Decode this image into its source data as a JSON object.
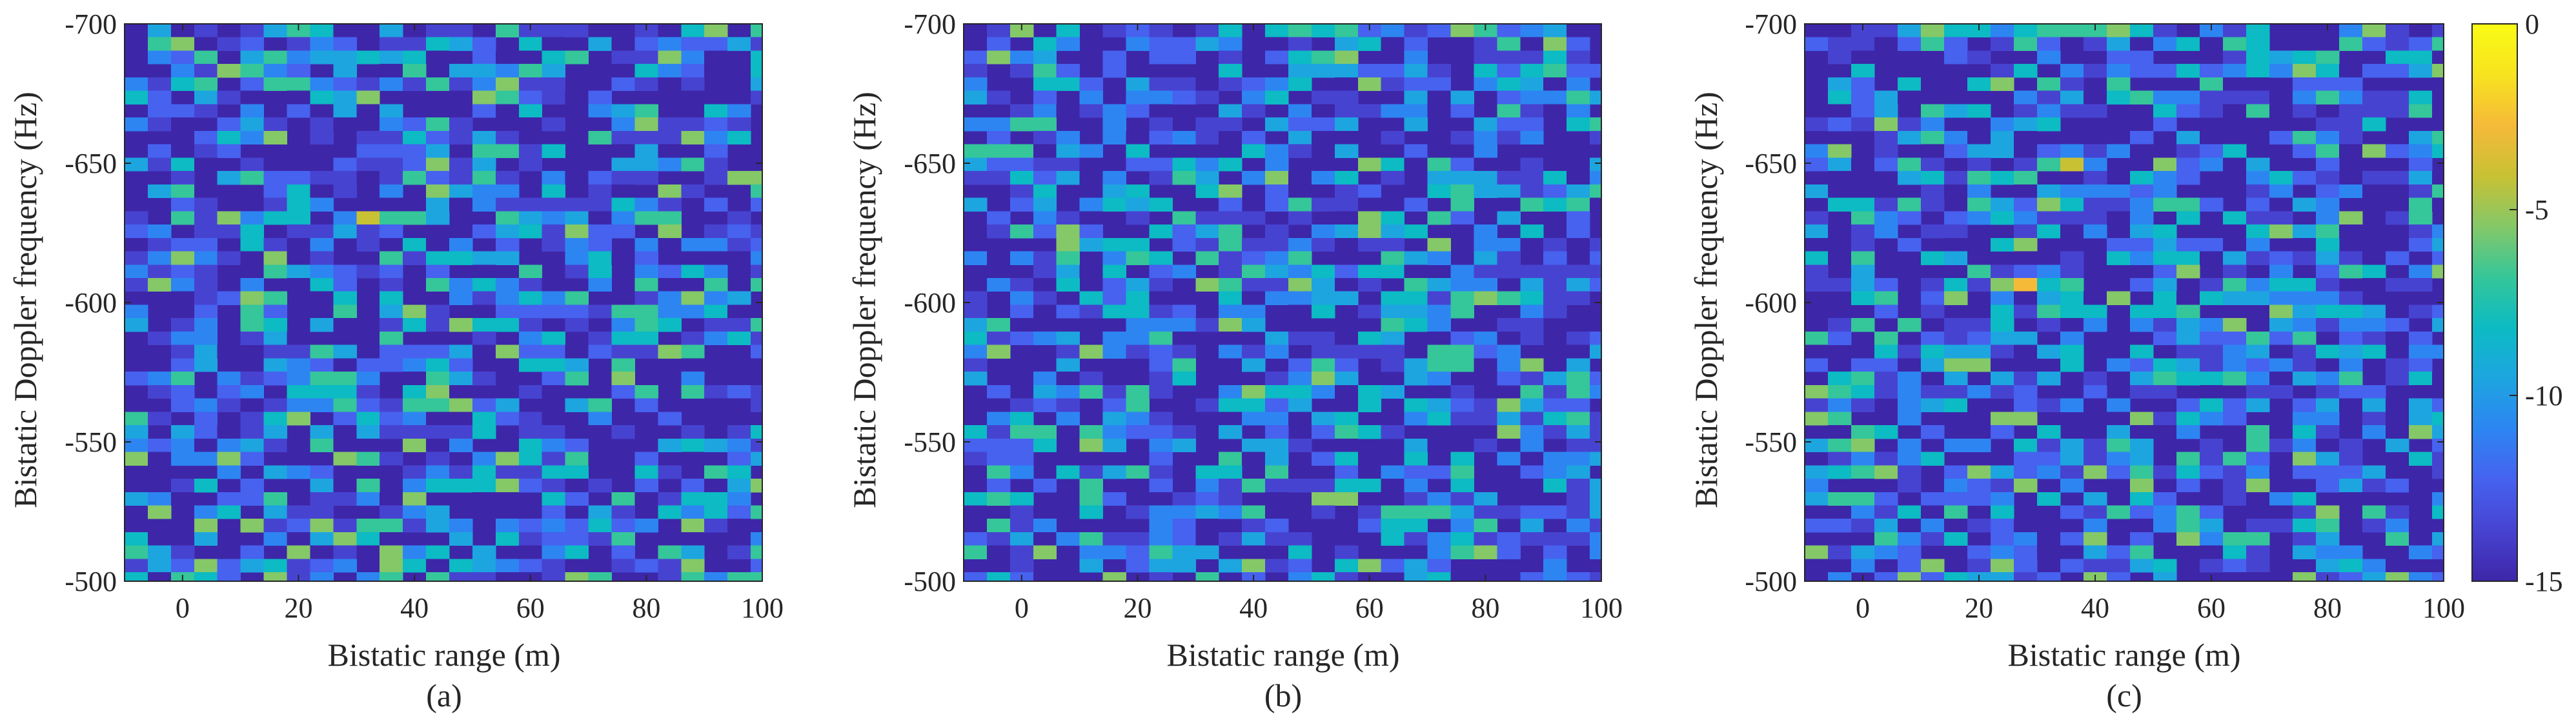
{
  "colormap": [
    "#3e26a8",
    "#4743d1",
    "#4662ef",
    "#2d85f2",
    "#1da5e0",
    "#0cbbc3",
    "#35c69a",
    "#84c868",
    "#c8c134",
    "#f6ba39",
    "#f7e31f",
    "#f9fb15"
  ],
  "chart_data": [
    {
      "type": "heatmap",
      "panel_label": "(a)",
      "xlabel": "Bistatic range (m)",
      "ylabel": "Bistatic Doppler frequency (Hz)",
      "xlim": [
        -10,
        100
      ],
      "ylim": [
        -700,
        -500
      ],
      "xticks": [
        "0",
        "20",
        "40",
        "60",
        "80",
        "100"
      ],
      "xtick_values": [
        0,
        20,
        40,
        60,
        80,
        100
      ],
      "yticks": [
        "-700",
        "-650",
        "-600",
        "-550",
        "-500"
      ],
      "ytick_values": [
        -700,
        -650,
        -600,
        -550,
        -500
      ],
      "grid": {
        "range_bins": 28,
        "doppler_bins": 42,
        "range_step_m": 4,
        "doppler_step_hz": 4.8
      },
      "value_range_db": [
        -15,
        0
      ],
      "seed": 11,
      "hotspots": [
        {
          "range": 33,
          "doppler": -630,
          "value_db": -4
        },
        {
          "range": 88,
          "doppler": -600,
          "value_db": -4
        },
        {
          "range": 0,
          "doppler": -615,
          "value_db": -5
        },
        {
          "range": 55,
          "doppler": -535,
          "value_db": -5
        },
        {
          "range": 90,
          "doppler": -528,
          "value_db": -5
        },
        {
          "range": -7,
          "doppler": -510,
          "value_db": -6
        },
        {
          "range": 28,
          "doppler": -515,
          "value_db": -5
        },
        {
          "range": 85,
          "doppler": -690,
          "value_db": -6
        }
      ],
      "units": "dB"
    },
    {
      "type": "heatmap",
      "panel_label": "(b)",
      "xlabel": "Bistatic range (m)",
      "ylabel": "Bistatic Doppler frequency (Hz)",
      "xlim": [
        -10,
        100
      ],
      "ylim": [
        -700,
        -500
      ],
      "xticks": [
        "0",
        "20",
        "40",
        "60",
        "80",
        "100"
      ],
      "xtick_values": [
        0,
        20,
        40,
        60,
        80,
        100
      ],
      "yticks": [
        "-700",
        "-650",
        "-600",
        "-550",
        "-500"
      ],
      "ytick_values": [
        -700,
        -650,
        -600,
        -550,
        -500
      ],
      "grid": {
        "range_bins": 28,
        "doppler_bins": 42,
        "range_step_m": 4,
        "doppler_step_hz": 4.8
      },
      "value_range_db": [
        -15,
        0
      ],
      "seed": 23,
      "hotspots": [
        {
          "range": 25,
          "doppler": -512,
          "value_db": -4
        },
        {
          "range": 38,
          "doppler": -565,
          "value_db": -5
        },
        {
          "range": 75,
          "doppler": -513,
          "value_db": -5
        },
        {
          "range": -8,
          "doppler": -652,
          "value_db": -6
        },
        {
          "range": 60,
          "doppler": -625,
          "value_db": -5
        },
        {
          "range": 85,
          "doppler": -680,
          "value_db": -6
        },
        {
          "range": 18,
          "doppler": -598,
          "value_db": -6
        },
        {
          "range": 95,
          "doppler": -572,
          "value_db": -6
        }
      ],
      "units": "dB"
    },
    {
      "type": "heatmap",
      "panel_label": "(c)",
      "xlabel": "Bistatic range (m)",
      "ylabel": "Bistatic Doppler frequency (Hz)",
      "xlim": [
        -10,
        100
      ],
      "ylim": [
        -700,
        -500
      ],
      "xticks": [
        "0",
        "20",
        "40",
        "60",
        "80",
        "100"
      ],
      "xtick_values": [
        0,
        20,
        40,
        60,
        80,
        100
      ],
      "yticks": [
        "-700",
        "-650",
        "-600",
        "-550",
        "-500"
      ],
      "ytick_values": [
        -700,
        -650,
        -600,
        -550,
        -500
      ],
      "grid": {
        "range_bins": 28,
        "doppler_bins": 42,
        "range_step_m": 4,
        "doppler_step_hz": 4.8
      },
      "value_range_db": [
        -15,
        0
      ],
      "seed": 37,
      "hotspots": [
        {
          "range": 27,
          "doppler": -607,
          "value_db": -2
        },
        {
          "range": 35,
          "doppler": -651,
          "value_db": -2
        },
        {
          "range": 45,
          "doppler": -698,
          "value_db": -5
        },
        {
          "range": 80,
          "doppler": -675,
          "value_db": -6
        },
        {
          "range": 0,
          "doppler": -540,
          "value_db": -6
        },
        {
          "range": 85,
          "doppler": -595,
          "value_db": -6
        },
        {
          "range": 65,
          "doppler": -580,
          "value_db": -8
        }
      ],
      "units": "dB"
    }
  ],
  "colorbar": {
    "ticks": [
      "0",
      "-5",
      "-10",
      "-15"
    ],
    "tick_values": [
      0,
      -5,
      -10,
      -15
    ],
    "range": [
      -15,
      0
    ]
  }
}
